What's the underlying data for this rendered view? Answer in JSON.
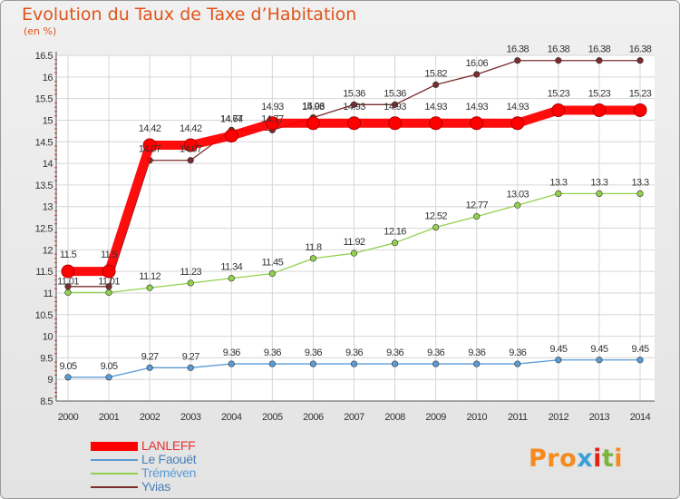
{
  "chart_data": {
    "type": "line",
    "title": "Evolution du Taux de Taxe d’Habitation",
    "ylabel": "(en %)",
    "x": [
      "2000",
      "2001",
      "2002",
      "2003",
      "2004",
      "2005",
      "2006",
      "2007",
      "2008",
      "2009",
      "2010",
      "2011",
      "2012",
      "2013",
      "2014"
    ],
    "ylim": [
      8.5,
      16.5
    ],
    "yticks": [
      "8.5",
      "9",
      "9.5",
      "10",
      "10.5",
      "11",
      "11.5",
      "12",
      "12.5",
      "13",
      "13.5",
      "14",
      "14.5",
      "15",
      "15.5",
      "16",
      "16.5"
    ],
    "grid": true,
    "series": [
      {
        "name": "LANLEFF",
        "color": "#ff0000",
        "values": [
          11.5,
          11.5,
          14.42,
          14.42,
          14.64,
          14.93,
          14.93,
          14.93,
          14.93,
          14.93,
          14.93,
          14.93,
          15.23,
          15.23,
          15.23
        ],
        "labels": [
          "11.5",
          "11.5",
          "14.42",
          "14.42",
          "14.64",
          "14.93",
          "14.93",
          "14.93",
          "14.93",
          "14.93",
          "14.93",
          "14.93",
          "15.23",
          "15.23",
          "15.23"
        ]
      },
      {
        "name": "Le Faouët",
        "color": "#5b9bd5",
        "values": [
          9.05,
          9.05,
          9.27,
          9.27,
          9.36,
          9.36,
          9.36,
          9.36,
          9.36,
          9.36,
          9.36,
          9.36,
          9.45,
          9.45,
          9.45
        ],
        "labels": [
          "9.05",
          "9.05",
          "9.27",
          "9.27",
          "9.36",
          "9.36",
          "9.36",
          "9.36",
          "9.36",
          "9.36",
          "9.36",
          "9.36",
          "9.45",
          "9.45",
          "9.45"
        ]
      },
      {
        "name": "Tréméven",
        "color": "#92d050",
        "values": [
          11.01,
          11.01,
          11.12,
          11.23,
          11.34,
          11.45,
          11.8,
          11.92,
          12.16,
          12.52,
          12.77,
          13.03,
          13.3,
          13.3,
          13.3
        ],
        "labels": [
          "11.01",
          "11.01",
          "11.12",
          "11.23",
          "11.34",
          "11.45",
          "11.8",
          "11.92",
          "12.16",
          "12.52",
          "12.77",
          "13.03",
          "13.3",
          "13.3",
          "13.3"
        ]
      },
      {
        "name": "Yvias",
        "color": "#7b2c2c",
        "values": [
          11.15,
          11.15,
          14.07,
          14.07,
          14.77,
          14.77,
          15.06,
          15.36,
          15.36,
          15.82,
          16.06,
          16.38,
          16.38,
          16.38,
          16.38
        ],
        "labels": [
          "",
          "",
          "14.07",
          "14.07",
          "14.77",
          "14.77",
          "15.06",
          "15.36",
          "15.36",
          "15.82",
          "16.06",
          "16.38",
          "16.38",
          "16.38",
          "16.38"
        ]
      }
    ],
    "legend_position": "bottom-left"
  },
  "logo": {
    "text": "Proxiti",
    "colors": [
      "#f58a1f",
      "#f58a1f",
      "#f58a1f",
      "#3aa0d8",
      "#e2231a",
      "#7cb342",
      "#f58a1f"
    ]
  }
}
